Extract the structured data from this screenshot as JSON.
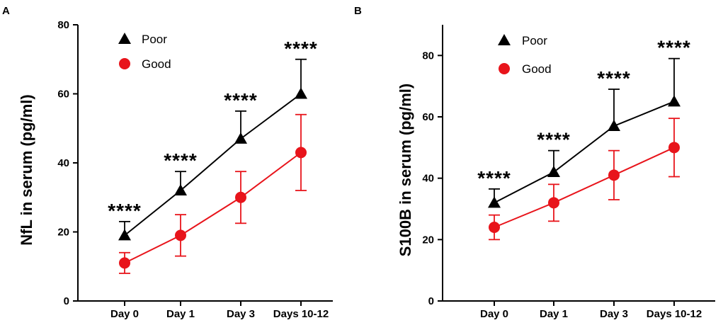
{
  "colors": {
    "poor": "#000000",
    "good": "#e8141b"
  },
  "icons": {
    "poor": "triangle-marker",
    "good": "circle-marker"
  },
  "chart_data": [
    {
      "panel": "A",
      "type": "line",
      "title": "",
      "xlabel": "",
      "ylabel": "NfL in serum (pg/ml)",
      "categories": [
        "Day 0",
        "Day 1",
        "Day 3",
        "Days 10-12"
      ],
      "ylim": [
        0,
        80
      ],
      "yticks": [
        0,
        20,
        40,
        60,
        80
      ],
      "legend": "top-left",
      "grid": false,
      "series": [
        {
          "name": "Poor",
          "values": [
            19,
            32,
            47,
            60
          ],
          "errors": [
            4,
            5.5,
            8,
            10
          ],
          "marker": "triangle"
        },
        {
          "name": "Good",
          "values": [
            11,
            19,
            30,
            43
          ],
          "errors": [
            3,
            6,
            7.5,
            11
          ],
          "marker": "circle"
        }
      ],
      "annotations": [
        "****",
        "****",
        "****",
        "****"
      ]
    },
    {
      "panel": "B",
      "type": "line",
      "title": "",
      "xlabel": "",
      "ylabel": "S100B in serum (pg/ml)",
      "categories": [
        "Day 0",
        "Day 1",
        "Day 3",
        "Days 10-12"
      ],
      "ylim": [
        0,
        90
      ],
      "yticks": [
        0,
        20,
        40,
        60,
        80
      ],
      "legend": "top-left",
      "grid": false,
      "series": [
        {
          "name": "Poor",
          "values": [
            32,
            42,
            57,
            65
          ],
          "errors": [
            4.5,
            7,
            12,
            14
          ],
          "marker": "triangle"
        },
        {
          "name": "Good",
          "values": [
            24,
            32,
            41,
            50
          ],
          "errors": [
            4,
            6,
            8,
            9.5
          ],
          "marker": "circle"
        }
      ],
      "annotations": [
        "****",
        "****",
        "****",
        "****"
      ]
    }
  ]
}
